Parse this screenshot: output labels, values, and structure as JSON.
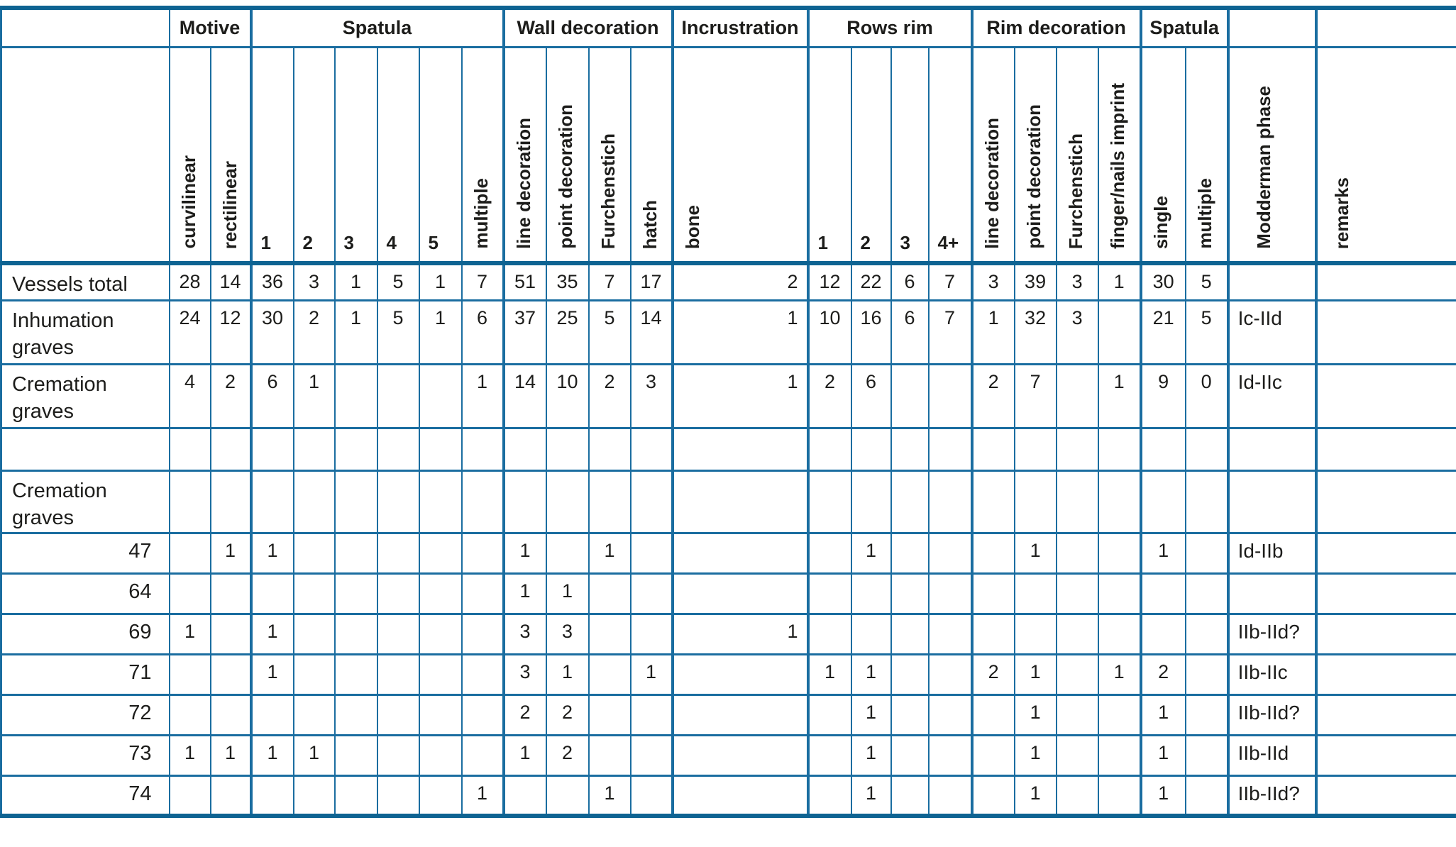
{
  "colors": {
    "grid_border": "#1a6da0",
    "section_border": "#0e6392",
    "text": "#1d1d1b",
    "background": "#ffffff"
  },
  "table": {
    "group_header": [
      {
        "label": "",
        "span": 1
      },
      {
        "label": "Motive",
        "span": 2
      },
      {
        "label": "Spatula",
        "span": 6
      },
      {
        "label": "Wall decoration",
        "span": 4
      },
      {
        "label": "Incrustration",
        "span": 1
      },
      {
        "label": "Rows rim",
        "span": 4
      },
      {
        "label": "Rim decoration",
        "span": 4
      },
      {
        "label": "Spatula",
        "span": 2
      },
      {
        "label": "",
        "span": 1
      },
      {
        "label": "",
        "span": 1
      }
    ],
    "columns": [
      {
        "label": "curvilinear",
        "rotated": true
      },
      {
        "label": "rectilinear",
        "rotated": true
      },
      {
        "label": "1",
        "rotated": false
      },
      {
        "label": "2",
        "rotated": false
      },
      {
        "label": "3",
        "rotated": false
      },
      {
        "label": "4",
        "rotated": false
      },
      {
        "label": "5",
        "rotated": false
      },
      {
        "label": "multiple",
        "rotated": true
      },
      {
        "label": "line decoration",
        "rotated": true
      },
      {
        "label": "point decoration",
        "rotated": true
      },
      {
        "label": "Furchenstich",
        "rotated": true
      },
      {
        "label": "hatch",
        "rotated": true
      },
      {
        "label": "bone",
        "rotated": true
      },
      {
        "label": "1",
        "rotated": false
      },
      {
        "label": "2",
        "rotated": false
      },
      {
        "label": "3",
        "rotated": false
      },
      {
        "label": "4+",
        "rotated": false
      },
      {
        "label": "line decoration",
        "rotated": true
      },
      {
        "label": "point decoration",
        "rotated": true
      },
      {
        "label": "Furchenstich",
        "rotated": true
      },
      {
        "label": "finger/nails imprint",
        "rotated": true
      },
      {
        "label": "single",
        "rotated": true
      },
      {
        "label": "multiple",
        "rotated": true
      },
      {
        "label": "Modderman phase",
        "rotated": true
      },
      {
        "label": "remarks",
        "rotated": true
      }
    ],
    "rows": [
      {
        "label": "Vessels total",
        "kind": "summary",
        "cells": [
          "28",
          "14",
          "36",
          "3",
          "1",
          "5",
          "1",
          "7",
          "51",
          "35",
          "7",
          "17",
          "2",
          "12",
          "22",
          "6",
          "7",
          "3",
          "39",
          "3",
          "1",
          "30",
          "5",
          "",
          ""
        ]
      },
      {
        "label": "Inhumation graves",
        "kind": "summary-tall",
        "cells": [
          "24",
          "12",
          "30",
          "2",
          "1",
          "5",
          "1",
          "6",
          "37",
          "25",
          "5",
          "14",
          "1",
          "10",
          "16",
          "6",
          "7",
          "1",
          "32",
          "3",
          "",
          "21",
          "5",
          "Ic-IId",
          ""
        ]
      },
      {
        "label": "Cremation graves",
        "kind": "summary-tall",
        "cells": [
          "4",
          "2",
          "6",
          "1",
          "",
          "",
          "",
          "1",
          "14",
          "10",
          "2",
          "3",
          "1",
          "2",
          "6",
          "",
          "",
          "2",
          "7",
          "",
          "1",
          "9",
          "0",
          "Id-IIc",
          ""
        ]
      },
      {
        "label": "",
        "kind": "spacer",
        "cells": [
          "",
          "",
          "",
          "",
          "",
          "",
          "",
          "",
          "",
          "",
          "",
          "",
          "",
          "",
          "",
          "",
          "",
          "",
          "",
          "",
          "",
          "",
          "",
          "",
          ""
        ]
      },
      {
        "label": "Cremation graves",
        "kind": "section",
        "cells": [
          "",
          "",
          "",
          "",
          "",
          "",
          "",
          "",
          "",
          "",
          "",
          "",
          "",
          "",
          "",
          "",
          "",
          "",
          "",
          "",
          "",
          "",
          "",
          "",
          ""
        ]
      },
      {
        "label": "47",
        "kind": "grave",
        "cells": [
          "",
          "1",
          "1",
          "",
          "",
          "",
          "",
          "",
          "1",
          "",
          "1",
          "",
          "",
          "",
          "1",
          "",
          "",
          "",
          "1",
          "",
          "",
          "1",
          "",
          "Id-IIb",
          ""
        ]
      },
      {
        "label": "64",
        "kind": "grave",
        "cells": [
          "",
          "",
          "",
          "",
          "",
          "",
          "",
          "",
          "1",
          "1",
          "",
          "",
          "",
          "",
          "",
          "",
          "",
          "",
          "",
          "",
          "",
          "",
          "",
          "",
          ""
        ]
      },
      {
        "label": "69",
        "kind": "grave",
        "cells": [
          "1",
          "",
          "1",
          "",
          "",
          "",
          "",
          "",
          "3",
          "3",
          "",
          "",
          "1",
          "",
          "",
          "",
          "",
          "",
          "",
          "",
          "",
          "",
          "",
          "IIb-IId?",
          ""
        ]
      },
      {
        "label": "71",
        "kind": "grave",
        "cells": [
          "",
          "",
          "1",
          "",
          "",
          "",
          "",
          "",
          "3",
          "1",
          "",
          "1",
          "",
          "1",
          "1",
          "",
          "",
          "2",
          "1",
          "",
          "1",
          "2",
          "",
          "IIb-IIc",
          ""
        ]
      },
      {
        "label": "72",
        "kind": "grave",
        "cells": [
          "",
          "",
          "",
          "",
          "",
          "",
          "",
          "",
          "2",
          "2",
          "",
          "",
          "",
          "",
          "1",
          "",
          "",
          "",
          "1",
          "",
          "",
          "1",
          "",
          "IIb-IId?",
          ""
        ]
      },
      {
        "label": "73",
        "kind": "grave",
        "cells": [
          "1",
          "1",
          "1",
          "1",
          "",
          "",
          "",
          "",
          "1",
          "2",
          "",
          "",
          "",
          "",
          "1",
          "",
          "",
          "",
          "1",
          "",
          "",
          "1",
          "",
          "IIb-IId",
          ""
        ]
      },
      {
        "label": "74",
        "kind": "grave",
        "cells": [
          "",
          "",
          "",
          "",
          "",
          "",
          "",
          "1",
          "",
          "",
          "1",
          "",
          "",
          "",
          "1",
          "",
          "",
          "",
          "1",
          "",
          "",
          "1",
          "",
          "IIb-IId?",
          ""
        ]
      }
    ]
  }
}
